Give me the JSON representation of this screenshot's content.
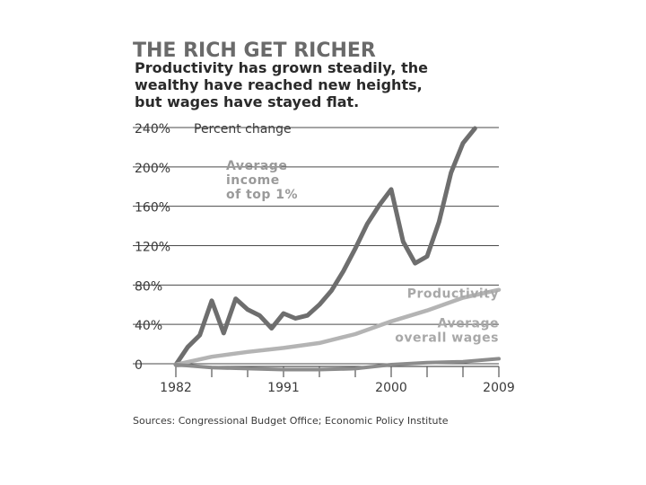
{
  "title": "THE RICH GET RICHER",
  "subtitle_lines": [
    "Productivity has grown steadily, the",
    "wealthy have reached new heights,",
    "but wages have stayed flat."
  ],
  "source": "Sources: Congressional Budget Office; Economic Policy Institute",
  "chart_data": {
    "type": "line",
    "title": "THE RICH GET RICHER",
    "ylabel": "Percent change",
    "xlim": [
      1982,
      2009
    ],
    "ylim": [
      0,
      240
    ],
    "x_ticks": [
      1982,
      1991,
      2000,
      2009
    ],
    "y_ticks": [
      0,
      40,
      80,
      120,
      160,
      200,
      240
    ],
    "y_tick_labels": [
      "0",
      "40%",
      "80%",
      "120%",
      "160%",
      "200%",
      "240%"
    ],
    "grid": true,
    "series": [
      {
        "name": "Average income of top 1%",
        "label_lines": [
          "Average",
          "income",
          "of top 1%"
        ],
        "color": "#6e6e6e",
        "x": [
          1982,
          1983,
          1984,
          1985,
          1986,
          1987,
          1988,
          1989,
          1990,
          1991,
          1992,
          1993,
          1994,
          1995,
          1996,
          1997,
          1998,
          1999,
          2000,
          2001,
          2002,
          2003,
          2004,
          2005,
          2006,
          2007
        ],
        "y": [
          0,
          18,
          30,
          65,
          32,
          67,
          56,
          50,
          37,
          52,
          47,
          50,
          61,
          75,
          95,
          118,
          143,
          162,
          178,
          125,
          103,
          110,
          145,
          195,
          225,
          240
        ]
      },
      {
        "name": "Productivity",
        "label_lines": [
          "Productivity"
        ],
        "color": "#b4b4b4",
        "x": [
          1982,
          1985,
          1988,
          1991,
          1994,
          1997,
          2000,
          2003,
          2006,
          2009
        ],
        "y": [
          0,
          8,
          13,
          17,
          22,
          31,
          44,
          55,
          68,
          76
        ]
      },
      {
        "name": "Average overall wages",
        "label_lines": [
          "Average",
          "overall wages"
        ],
        "color": "#8c8c8c",
        "x": [
          1982,
          1985,
          1988,
          1991,
          1994,
          1997,
          2000,
          2003,
          2006,
          2009
        ],
        "y": [
          0,
          -3,
          -4,
          -5,
          -5,
          -4,
          0,
          2,
          3,
          6
        ]
      }
    ]
  }
}
